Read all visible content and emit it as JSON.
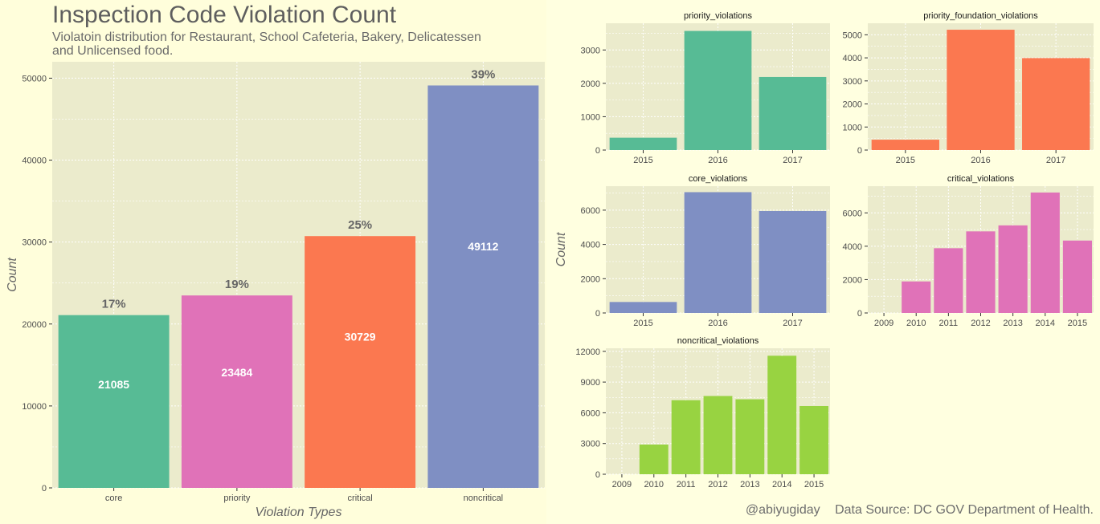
{
  "main": {
    "title": "Inspection Code Violation Count",
    "subtitle": "Violatoin distribution for Restaurant, School Cafeteria, Bakery, Delicatessen\n and Unlicensed food."
  },
  "credit": {
    "author": "@abiyugiday",
    "source": "Data Source: DC GOV Department of Health."
  },
  "colors": {
    "background": "#ffffe0",
    "panel": "#ebebcc",
    "grid": "#ffffff",
    "teal": "#57bb95",
    "pink": "#e072b8",
    "orange": "#fb7850",
    "blue": "#7f8fc3",
    "green": "#98d341",
    "text": "#666666"
  },
  "chart_data": [
    {
      "id": "overall",
      "type": "bar",
      "categories": [
        "core",
        "priority",
        "critical",
        "noncritical"
      ],
      "values": [
        21085,
        23484,
        30729,
        49112
      ],
      "value_labels": [
        "21085",
        "23484",
        "30729",
        "49112"
      ],
      "percent_labels": [
        "17%",
        "19%",
        "25%",
        "39%"
      ],
      "colors": [
        "#57bb95",
        "#e072b8",
        "#fb7850",
        "#7f8fc3"
      ],
      "xlabel": "Violation Types",
      "ylabel": "Count",
      "ylim": [
        0,
        52000
      ],
      "yticks": [
        0,
        10000,
        20000,
        30000,
        40000,
        50000
      ],
      "grid": true
    },
    {
      "id": "priority_violations",
      "type": "bar",
      "title": "priority_violations",
      "categories": [
        "2015",
        "2016",
        "2017"
      ],
      "values": [
        370,
        3570,
        2190
      ],
      "color": "#57bb95",
      "ylim": [
        0,
        3800
      ],
      "yticks": [
        0,
        1000,
        2000,
        3000
      ],
      "grid": true
    },
    {
      "id": "priority_foundation_violations",
      "type": "bar",
      "title": "priority_foundation_violations",
      "categories": [
        "2015",
        "2016",
        "2017"
      ],
      "values": [
        450,
        5220,
        3990
      ],
      "color": "#fb7850",
      "ylim": [
        0,
        5500
      ],
      "yticks": [
        0,
        1000,
        2000,
        3000,
        4000,
        5000
      ],
      "grid": true
    },
    {
      "id": "core_violations",
      "type": "bar",
      "title": "core_violations",
      "categories": [
        "2015",
        "2016",
        "2017"
      ],
      "values": [
        640,
        7050,
        5950
      ],
      "color": "#7f8fc3",
      "ylim": [
        0,
        7400
      ],
      "yticks": [
        0,
        2000,
        4000,
        6000
      ],
      "grid": true
    },
    {
      "id": "critical_violations",
      "type": "bar",
      "title": "critical_violations",
      "categories": [
        "2009",
        "2010",
        "2011",
        "2012",
        "2013",
        "2014",
        "2015"
      ],
      "values": [
        0,
        1890,
        3880,
        4890,
        5250,
        7220,
        4340
      ],
      "color": "#e072b8",
      "ylim": [
        0,
        7600
      ],
      "yticks": [
        0,
        2000,
        4000,
        6000
      ],
      "grid": true
    },
    {
      "id": "noncritical_violations",
      "type": "bar",
      "title": "noncritical_violations",
      "categories": [
        "2009",
        "2010",
        "2011",
        "2012",
        "2013",
        "2014",
        "2015"
      ],
      "values": [
        0,
        2900,
        7230,
        7640,
        7320,
        11570,
        6660
      ],
      "color": "#98d341",
      "ylim": [
        0,
        12300
      ],
      "yticks": [
        0,
        3000,
        6000,
        9000,
        12000
      ],
      "grid": true
    }
  ],
  "facet_ylabel": "Count"
}
